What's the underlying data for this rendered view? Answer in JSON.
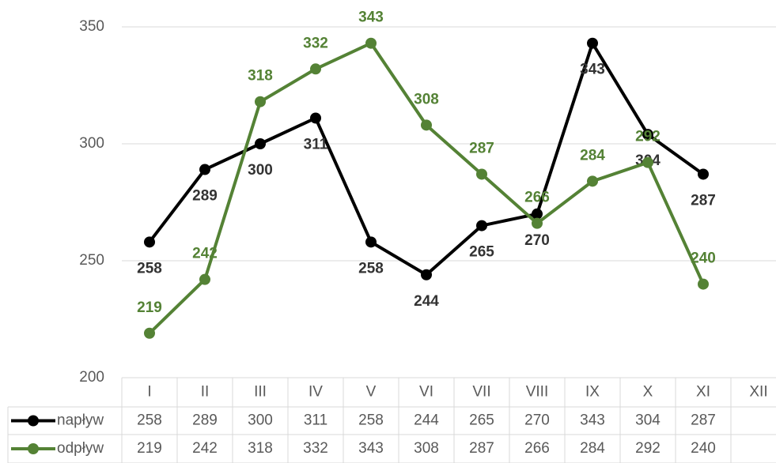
{
  "chart_data": {
    "type": "line",
    "categories": [
      "I",
      "II",
      "III",
      "IV",
      "V",
      "VI",
      "VII",
      "VIII",
      "IX",
      "X",
      "XI",
      "XII"
    ],
    "series": [
      {
        "name": "napływ",
        "color": "#000000",
        "label_color": "#333333",
        "values": [
          258,
          289,
          300,
          311,
          258,
          244,
          265,
          270,
          343,
          304,
          287,
          null
        ]
      },
      {
        "name": "odpływ",
        "color": "#548235",
        "label_color": "#548235",
        "values": [
          219,
          242,
          318,
          332,
          343,
          308,
          287,
          266,
          284,
          292,
          240,
          null
        ]
      }
    ],
    "ylim": [
      200,
      350
    ],
    "yticks": [
      200,
      250,
      300,
      350
    ],
    "grid": true
  }
}
